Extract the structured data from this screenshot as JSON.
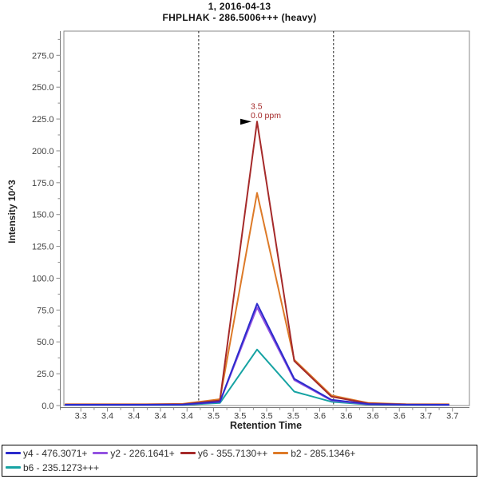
{
  "header": {
    "title_line1": "1, 2016-04-13",
    "title_line2": "FHPLHAK - 286.5006+++ (heavy)"
  },
  "chart_data": {
    "type": "line",
    "title": "1, 2016-04-13",
    "subtitle": "FHPLHAK - 286.5006+++ (heavy)",
    "xlabel": "Retention Time",
    "ylabel": "Intensity 10^3",
    "xlim": [
      3.309,
      3.691
    ],
    "ylim": [
      0,
      294
    ],
    "grid": false,
    "legend_position": "bottom",
    "x_major_tick_start": 3.325,
    "x_major_tick_step": 0.025,
    "x_tick_labels": [
      "3.3",
      "3.4",
      "3.4",
      "3.4",
      "3.4",
      "3.5",
      "3.5",
      "3.5",
      "3.5",
      "3.6",
      "3.6",
      "3.6",
      "3.6",
      "3.7",
      "3.7"
    ],
    "y_major_ticks": [
      0,
      25,
      50,
      75,
      100,
      125,
      150,
      175,
      200,
      225,
      250,
      275
    ],
    "y_tick_labels": [
      "0.0",
      "25.0",
      "50.0",
      "75.0",
      "100.0",
      "125.0",
      "150.0",
      "175.0",
      "200.0",
      "225.0",
      "250.0",
      "275.0"
    ],
    "integration_boundaries": {
      "left": 3.436,
      "right": 3.563
    },
    "peak_annotation": {
      "label": "3.5",
      "sub_label": "0.0 ppm",
      "x": 3.491,
      "y": 223,
      "color": "#A52A2A"
    },
    "x": [
      3.31,
      3.351,
      3.386,
      3.421,
      3.456,
      3.491,
      3.526,
      3.561,
      3.596,
      3.631,
      3.666,
      3.672
    ],
    "series": [
      {
        "name": "y4 - 476.3071+",
        "color": "#2B2BCC",
        "values": [
          0.6,
          0.6,
          0.6,
          0.8,
          3.0,
          80,
          21,
          4.5,
          1.2,
          0.7,
          0.6,
          0.6
        ]
      },
      {
        "name": "y2 - 226.1641+",
        "color": "#9353E1",
        "values": [
          0.5,
          0.5,
          0.5,
          0.7,
          2.8,
          77,
          20,
          4.0,
          1.0,
          0.6,
          0.5,
          0.5
        ]
      },
      {
        "name": "y6 - 355.7130++",
        "color": "#A52A2A",
        "values": [
          0.8,
          0.8,
          0.8,
          1.0,
          4.0,
          223,
          35,
          7.0,
          1.6,
          0.9,
          0.8,
          0.8
        ]
      },
      {
        "name": "b2 - 285.1346+",
        "color": "#DD7A28",
        "values": [
          1.0,
          1.0,
          1.0,
          1.3,
          5.0,
          167,
          36,
          8.0,
          2.0,
          1.1,
          1.0,
          1.0
        ]
      },
      {
        "name": "b6 - 235.1273+++",
        "color": "#16A3A3",
        "values": [
          0.4,
          0.4,
          0.4,
          0.5,
          2.0,
          44,
          11,
          3.0,
          0.8,
          0.5,
          0.4,
          0.4
        ]
      }
    ],
    "draw_order": [
      4,
      3,
      2,
      1,
      0
    ],
    "legend_rows": [
      [
        0,
        1,
        2,
        3
      ],
      [
        4
      ]
    ],
    "colors": {
      "frame": "#8a8a8a",
      "axis_line": "#7a7a7a",
      "tick": "#8a8a8a",
      "boundary": "#1a1a1a",
      "arrow": "#000000"
    }
  }
}
